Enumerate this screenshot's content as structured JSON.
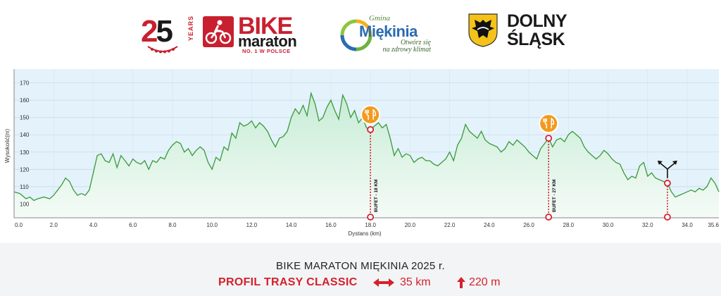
{
  "logos": {
    "anniversary": {
      "number_a": "2",
      "number_b": "5",
      "text": "YEARS"
    },
    "bike_maraton": {
      "word1": "BIKE",
      "word2": "maraton",
      "tagline": "NO. 1 W POLSCE"
    },
    "gmina": {
      "prefix": "Gmina",
      "name": "Miękinia",
      "slogan_line1": "Otwórz się",
      "slogan_line2": "na zdrowy klimat"
    },
    "dolny_slask": {
      "line1": "DOLNY",
      "line2": "ŚLĄSK"
    }
  },
  "footer": {
    "title": "BIKE MARATON MIĘKINIA 2025 r.",
    "subtitle": "PROFIL TRASY CLASSIC",
    "distance": "35 km",
    "climb": "220 m",
    "distance_icon": "double-arrow-icon",
    "climb_icon": "up-arrow-icon",
    "accent_color": "#d5202e"
  },
  "chart_data": {
    "type": "area",
    "title": "",
    "xlabel": "Dystans (km)",
    "ylabel": "Wysokość(m)",
    "xlim": [
      0,
      35.6
    ],
    "ylim": [
      92,
      178
    ],
    "x_ticks": [
      0,
      2,
      4,
      6,
      8,
      10,
      12,
      14,
      16,
      18,
      20,
      22,
      24,
      26,
      28,
      30,
      32,
      34,
      35.6
    ],
    "x_tick_labels": [
      "0.0",
      "2.0",
      "4.0",
      "6.0",
      "8.0",
      "10.0",
      "12.0",
      "14.0",
      "16.0",
      "18.0",
      "20.0",
      "22.0",
      "24.0",
      "26.0",
      "28.0",
      "30.0",
      "32.0",
      "34.0",
      "35.6"
    ],
    "y_ticks": [
      100,
      110,
      120,
      130,
      140,
      150,
      160,
      170
    ],
    "grid": true,
    "line_color": "#3a9a3a",
    "fill_color_top": "#cfeedd",
    "background_color": "#e6f3fa",
    "series": [
      {
        "name": "",
        "x": [
          0,
          0.3,
          0.6,
          0.8,
          1.0,
          1.2,
          1.5,
          1.8,
          2.0,
          2.2,
          2.4,
          2.6,
          2.8,
          3.0,
          3.2,
          3.4,
          3.6,
          3.8,
          4.0,
          4.2,
          4.4,
          4.6,
          4.8,
          5.0,
          5.2,
          5.4,
          5.6,
          5.8,
          6.0,
          6.2,
          6.4,
          6.6,
          6.8,
          7.0,
          7.2,
          7.4,
          7.6,
          7.8,
          8.0,
          8.2,
          8.4,
          8.6,
          8.8,
          9.0,
          9.2,
          9.4,
          9.6,
          9.8,
          10.0,
          10.2,
          10.4,
          10.6,
          10.8,
          11.0,
          11.2,
          11.4,
          11.6,
          11.8,
          12.0,
          12.2,
          12.4,
          12.6,
          12.8,
          13.0,
          13.2,
          13.4,
          13.6,
          13.8,
          14.0,
          14.2,
          14.4,
          14.6,
          14.8,
          15.0,
          15.2,
          15.4,
          15.6,
          15.8,
          16.0,
          16.2,
          16.4,
          16.6,
          16.8,
          17.0,
          17.2,
          17.4,
          17.6,
          17.8,
          18.0,
          18.2,
          18.4,
          18.6,
          18.8,
          19.0,
          19.2,
          19.4,
          19.6,
          19.8,
          20.0,
          20.2,
          20.4,
          20.6,
          20.8,
          21.0,
          21.2,
          21.4,
          21.6,
          21.8,
          22.0,
          22.2,
          22.4,
          22.6,
          22.8,
          23.0,
          23.2,
          23.4,
          23.6,
          23.8,
          24.0,
          24.2,
          24.4,
          24.6,
          24.8,
          25.0,
          25.2,
          25.4,
          25.6,
          25.8,
          26.0,
          26.2,
          26.4,
          26.6,
          26.8,
          27.0,
          27.2,
          27.4,
          27.6,
          27.8,
          28.0,
          28.2,
          28.4,
          28.6,
          28.8,
          29.0,
          29.2,
          29.4,
          29.6,
          29.8,
          30.0,
          30.2,
          30.4,
          30.6,
          30.8,
          31.0,
          31.2,
          31.4,
          31.6,
          31.8,
          32.0,
          32.2,
          32.4,
          32.6,
          32.8,
          33.0,
          33.2,
          33.4,
          33.6,
          33.8,
          34.0,
          34.2,
          34.4,
          34.6,
          34.8,
          35.0,
          35.2,
          35.4,
          35.6
        ],
        "y": [
          107,
          106,
          103,
          104,
          102,
          103,
          104,
          103,
          105,
          108,
          111,
          115,
          113,
          108,
          105,
          106,
          105,
          108,
          118,
          128,
          129,
          125,
          124,
          129,
          121,
          128,
          125,
          122,
          126,
          124,
          123,
          125,
          120,
          125,
          124,
          127,
          126,
          131,
          134,
          136,
          135,
          130,
          132,
          128,
          131,
          133,
          131,
          124,
          120,
          127,
          125,
          133,
          131,
          141,
          138,
          147,
          145,
          146,
          148,
          144,
          147,
          145,
          142,
          137,
          133,
          138,
          139,
          142,
          150,
          155,
          152,
          157,
          151,
          164,
          158,
          148,
          150,
          156,
          160,
          154,
          149,
          163,
          158,
          150,
          154,
          147,
          150,
          144,
          143,
          145,
          147,
          144,
          146,
          138,
          128,
          132,
          127,
          129,
          128,
          124,
          126,
          127,
          125,
          125,
          123,
          122,
          124,
          126,
          130,
          125,
          134,
          138,
          146,
          142,
          140,
          138,
          142,
          137,
          135,
          134,
          133,
          130,
          132,
          136,
          134,
          137,
          135,
          133,
          130,
          128,
          126,
          132,
          135,
          138,
          133,
          137,
          138,
          136,
          140,
          142,
          140,
          138,
          133,
          130,
          128,
          126,
          128,
          131,
          129,
          126,
          124,
          123,
          118,
          114,
          116,
          115,
          122,
          124,
          116,
          118,
          115,
          114,
          113,
          112,
          107,
          104,
          105,
          106,
          107,
          108,
          107,
          109,
          108,
          110,
          115,
          112,
          107
        ]
      }
    ],
    "markers": [
      {
        "x": 18.0,
        "y": 143,
        "label": "BUFET - 18 KM",
        "icon": "food-icon"
      },
      {
        "x": 27.0,
        "y": 138,
        "label": "BUFET - 27 KM",
        "icon": "food-icon"
      },
      {
        "x": 33.0,
        "y": 112,
        "label": "",
        "icon": "fork-split-icon"
      }
    ]
  }
}
